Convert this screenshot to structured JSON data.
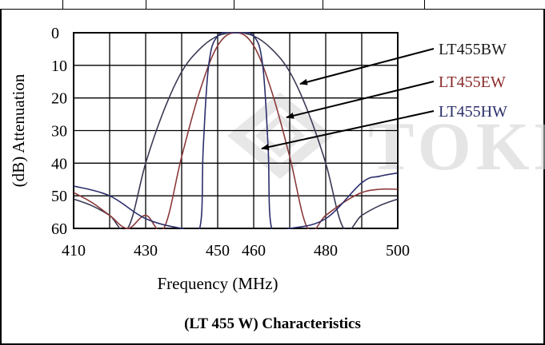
{
  "caption": "(LT 455 W) Characteristics",
  "watermark": "TOKEN",
  "chart_data": {
    "type": "line",
    "xlabel": "Frequency (MHz)",
    "ylabel": "(dB) Attenuation",
    "x_ticks": [
      410,
      430,
      450,
      460,
      480,
      500
    ],
    "y_ticks": [
      0,
      10,
      20,
      30,
      40,
      50,
      60
    ],
    "xlim": [
      410,
      500
    ],
    "ylim": [
      0,
      60
    ],
    "y_inverted": true,
    "grid": true,
    "series": [
      {
        "name": "LT455BW",
        "color": "#3a3a55",
        "label_color": "#1a1a1a",
        "points": [
          [
            410,
            51
          ],
          [
            415,
            53
          ],
          [
            420,
            56
          ],
          [
            425,
            60
          ],
          [
            430,
            40
          ],
          [
            435,
            24
          ],
          [
            440,
            12
          ],
          [
            445,
            5
          ],
          [
            450,
            1
          ],
          [
            455,
            0
          ],
          [
            460,
            1
          ],
          [
            465,
            5
          ],
          [
            470,
            12
          ],
          [
            475,
            24
          ],
          [
            480,
            40
          ],
          [
            485,
            60
          ],
          [
            490,
            56
          ],
          [
            495,
            53
          ],
          [
            500,
            51
          ]
        ]
      },
      {
        "name": "LT455EW",
        "color": "#8b3a3a",
        "label_color": "#8b2a2a",
        "points": [
          [
            410,
            49
          ],
          [
            415,
            52
          ],
          [
            420,
            56
          ],
          [
            425,
            60
          ],
          [
            430,
            56
          ],
          [
            435,
            60
          ],
          [
            440,
            38
          ],
          [
            445,
            18
          ],
          [
            450,
            4
          ],
          [
            455,
            0
          ],
          [
            460,
            4
          ],
          [
            465,
            18
          ],
          [
            470,
            38
          ],
          [
            475,
            60
          ],
          [
            480,
            56
          ],
          [
            485,
            52
          ],
          [
            490,
            49
          ],
          [
            495,
            48
          ],
          [
            500,
            48
          ]
        ]
      },
      {
        "name": "LT455HW",
        "color": "#2b2f6b",
        "label_color": "#2b2f6b",
        "points": [
          [
            410,
            47
          ],
          [
            420,
            50
          ],
          [
            430,
            57
          ],
          [
            440,
            60
          ],
          [
            445,
            60
          ],
          [
            446,
            35
          ],
          [
            447.5,
            10
          ],
          [
            450,
            1
          ],
          [
            455,
            0
          ],
          [
            460,
            1
          ],
          [
            462.5,
            10
          ],
          [
            464,
            35
          ],
          [
            465,
            60
          ],
          [
            470,
            60
          ],
          [
            480,
            57
          ],
          [
            490,
            46
          ],
          [
            495,
            44
          ],
          [
            500,
            43
          ]
        ]
      }
    ]
  }
}
